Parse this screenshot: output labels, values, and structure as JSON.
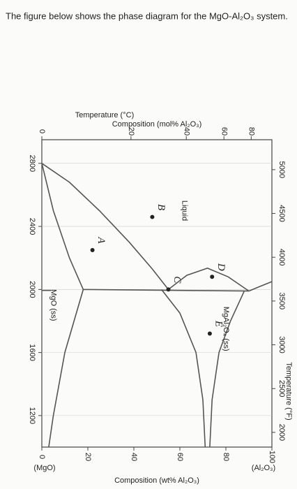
{
  "question": "The figure below shows the phase diagram for the MgO-Al₂O₃ system.",
  "diagram": {
    "top_axis_title": "Composition (mol% Al₂O₃)",
    "top_ticks": [
      "0",
      "20",
      "40",
      "60",
      "80"
    ],
    "left_axis_title": "Temperature (°C)",
    "left_ticks": [
      "2800",
      "2400",
      "2000",
      "1600",
      "1200"
    ],
    "right_axis_title": "Temperature (°F)",
    "right_ticks": [
      "5000",
      "4500",
      "4000",
      "3500",
      "3000",
      "2500",
      "2000"
    ],
    "bottom_axis_title": "Composition (wt% Al₂O₃)",
    "bottom_ticks": [
      "0",
      "20",
      "40",
      "60",
      "80",
      "100"
    ],
    "bottom_end_labels": [
      "(MgO)",
      "(Al₂O₃)"
    ],
    "regions": [
      "Liquid",
      "MgO (ss)",
      "MgAl₂O₄ (ss)"
    ],
    "points": [
      "A",
      "B",
      "C",
      "D",
      "E"
    ]
  }
}
